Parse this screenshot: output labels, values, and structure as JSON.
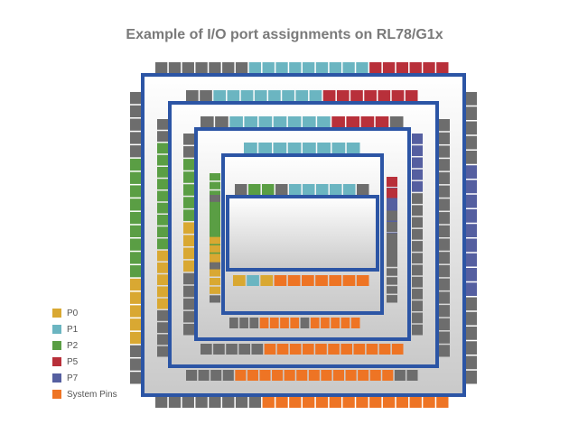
{
  "title": "Example of I/O port assignments on RL78/G1x",
  "colors": {
    "P0": "#d9a832",
    "P1": "#6bb5c1",
    "P2": "#5a9e44",
    "P5": "#b8303a",
    "P7": "#555fa0",
    "SYS": "#ee7424",
    "NC": "#6d6d6d",
    "frame": "#2c55a5"
  },
  "legend": [
    {
      "key": "P0",
      "label": "P0"
    },
    {
      "key": "P1",
      "label": "P1"
    },
    {
      "key": "P2",
      "label": "P2"
    },
    {
      "key": "P5",
      "label": "P5"
    },
    {
      "key": "P7",
      "label": "P7"
    },
    {
      "key": "SYS",
      "label": "System Pins"
    }
  ],
  "packages": [
    {
      "top": [
        [
          "NC",
          7
        ],
        [
          "P1",
          9
        ],
        [
          "P5",
          6
        ]
      ],
      "left": [
        [
          "NC",
          5
        ],
        [
          "P2",
          9
        ],
        [
          "P0",
          5
        ],
        [
          "NC",
          3
        ]
      ],
      "right": [
        [
          "NC",
          5
        ],
        [
          "P7",
          9
        ],
        [
          "NC",
          6
        ]
      ],
      "bottom": [
        [
          "NC",
          8
        ],
        [
          "SYS",
          14
        ]
      ]
    },
    {
      "top": [
        [
          "NC",
          2
        ],
        [
          "P1",
          8
        ],
        [
          "P5",
          7
        ]
      ],
      "left": [
        [
          "NC",
          2
        ],
        [
          "P2",
          9
        ],
        [
          "P0",
          5
        ],
        [
          "NC",
          4
        ]
      ],
      "right": [
        [
          "NC",
          18
        ]
      ],
      "bottom": [
        [
          "NC",
          4
        ],
        [
          "SYS",
          13
        ],
        [
          "NC",
          2
        ]
      ]
    },
    {
      "top": [
        [
          "NC",
          2
        ],
        [
          "P1",
          7
        ],
        [
          "P5",
          4
        ],
        [
          "NC",
          1
        ]
      ],
      "left": [
        [
          "NC",
          2
        ],
        [
          "P2",
          5
        ],
        [
          "P0",
          4
        ],
        [
          "NC",
          5
        ]
      ],
      "right": [
        [
          "P7",
          5
        ],
        [
          "NC",
          12
        ]
      ],
      "bottom": [
        [
          "NC",
          5
        ],
        [
          "SYS",
          11
        ]
      ]
    },
    {
      "top": [
        [
          "P1",
          8
        ]
      ],
      "left": [
        [
          "P2",
          10
        ],
        [
          "P0",
          4
        ],
        [
          "NC",
          1
        ]
      ],
      "right": [
        [
          "P7",
          7
        ],
        [
          "NC",
          7
        ]
      ],
      "bottom": [
        [
          "NC",
          3
        ],
        [
          "SYS",
          4
        ],
        [
          "NC",
          1
        ],
        [
          "SYS",
          5
        ]
      ]
    },
    {
      "top": [
        [
          "NC",
          1
        ],
        [
          "P2",
          2
        ],
        [
          "NC",
          1
        ],
        [
          "P1",
          5
        ],
        [
          "NC",
          1
        ]
      ],
      "left": [
        [
          "NC",
          1
        ],
        [
          "P2",
          4
        ],
        [
          "P0",
          3
        ],
        [
          "NC",
          1
        ]
      ],
      "right": [
        [
          "P5",
          2
        ],
        [
          "P7",
          1
        ],
        [
          "NC",
          5
        ]
      ],
      "bottom": [
        [
          "P0",
          1
        ],
        [
          "P1",
          1
        ],
        [
          "P0",
          1
        ],
        [
          "SYS",
          7
        ]
      ]
    }
  ]
}
